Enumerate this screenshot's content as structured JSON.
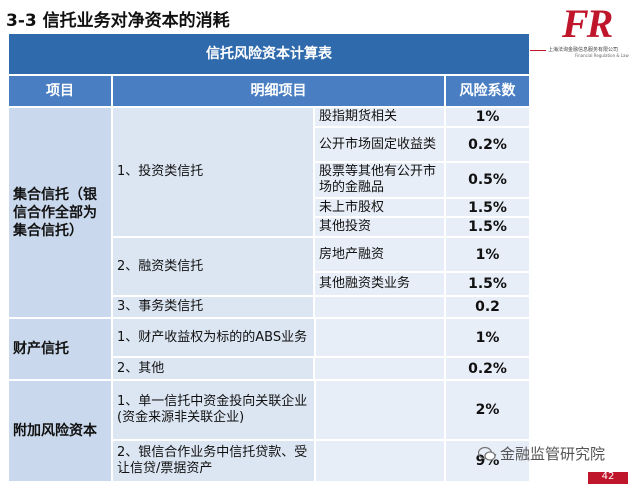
{
  "title": "3-3 信托业务对净资本的消耗",
  "logo": {
    "mark": "FR",
    "company": "上海法询金融信息服务有限公司",
    "english": "Financial Regulation & Law"
  },
  "table": {
    "caption": "信托风险资本计算表",
    "headers": [
      "项目",
      "明细项目",
      "风险系数"
    ],
    "groups": [
      {
        "name": "集合信托（银信合作全部为集合信托）",
        "items": [
          {
            "name": "1、投资类信托",
            "details": [
              {
                "name": "股指期货相关",
                "factor": "1%"
              },
              {
                "name": "公开市场固定收益类",
                "factor": "0.2%"
              },
              {
                "name": "股票等其他有公开市场的金融品",
                "factor": "0.5%"
              },
              {
                "name": "未上市股权",
                "factor": "1.5%"
              },
              {
                "name": "其他投资",
                "factor": "1.5%"
              }
            ]
          },
          {
            "name": "2、融资类信托",
            "details": [
              {
                "name": "房地产融资",
                "factor": "1%"
              },
              {
                "name": "其他融资类业务",
                "factor": "1.5%"
              }
            ]
          },
          {
            "name": "3、事务类信托",
            "factor": "0.2"
          }
        ]
      },
      {
        "name": "财产信托",
        "items": [
          {
            "name": "1、财产收益权为标的的ABS业务",
            "factor": "1%"
          },
          {
            "name": "2、其他",
            "factor": "0.2%"
          }
        ]
      },
      {
        "name": "附加风险资本",
        "items": [
          {
            "name": "1、单一信托中资金投向关联企业(资金来源非关联企业)",
            "factor": "2%"
          },
          {
            "name": "2、银信合作业务中信托贷款、受让信贷/票据资产",
            "factor": "9%"
          }
        ]
      }
    ]
  },
  "watermark": "金融监管研究院",
  "page_number": "42"
}
